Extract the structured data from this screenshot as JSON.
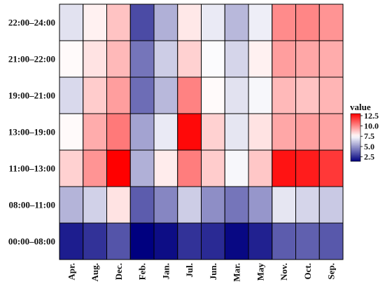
{
  "chart_data": {
    "type": "heatmap",
    "title": "",
    "xlabel": "",
    "ylabel": "",
    "x_categories": [
      "Apr.",
      "Aug.",
      "Dec.",
      "Feb.",
      "Jan.",
      "Jul.",
      "Jun.",
      "Mar.",
      "May",
      "Nov.",
      "Oct.",
      "Sep."
    ],
    "y_categories": [
      "22:00–24:00",
      "21:00–22:00",
      "19:00–21:00",
      "13:00–19:00",
      "11:00–13:00",
      "08:00–11:00",
      "00:00–08:00"
    ],
    "values": [
      [
        6.8,
        7.8,
        8.8,
        3.2,
        5.6,
        8.0,
        7.0,
        5.8,
        7.1,
        10.0,
        10.1,
        9.8
      ],
      [
        7.6,
        8.1,
        9.0,
        4.2,
        6.3,
        8.5,
        7.4,
        6.5,
        7.8,
        9.6,
        9.4,
        9.3
      ],
      [
        6.6,
        8.6,
        9.6,
        4.0,
        5.8,
        10.2,
        7.6,
        6.8,
        7.3,
        9.0,
        8.8,
        9.1
      ],
      [
        7.6,
        9.3,
        10.4,
        5.3,
        7.0,
        12.8,
        8.5,
        6.9,
        8.1,
        9.4,
        9.6,
        9.5
      ],
      [
        8.5,
        9.8,
        13.0,
        5.6,
        7.9,
        10.3,
        8.6,
        7.3,
        8.7,
        12.6,
        12.4,
        11.8
      ],
      [
        5.7,
        6.4,
        8.1,
        3.6,
        4.6,
        6.3,
        4.8,
        4.2,
        5.0,
        6.9,
        6.5,
        6.2
      ],
      [
        2.1,
        2.6,
        3.4,
        1.4,
        1.7,
        2.6,
        2.4,
        1.6,
        2.2,
        3.6,
        3.7,
        3.5
      ]
    ],
    "legend": {
      "title": "value",
      "ticks": [
        "12.5",
        "10.0",
        "7.5",
        "5.0",
        "2.5"
      ],
      "tick_values": [
        12.5,
        10.0,
        7.5,
        5.0,
        2.5
      ],
      "range": [
        1.4,
        13.0
      ],
      "colors": [
        "#00007f",
        "#ffffff",
        "#ff0000"
      ],
      "mid": 7.5,
      "placement": "right"
    },
    "grid": false
  }
}
